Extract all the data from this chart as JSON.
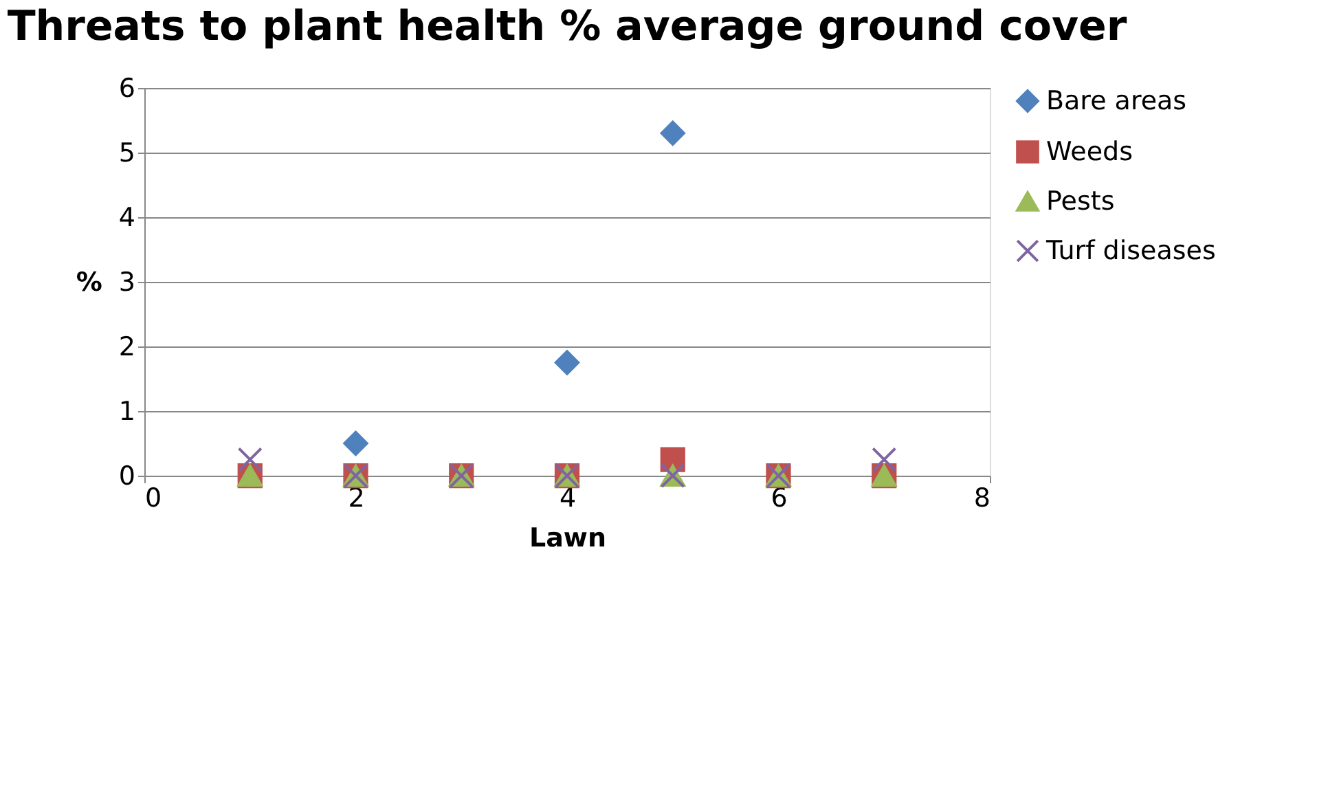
{
  "chart_data": {
    "type": "scatter",
    "title": "Threats to plant health % average ground cover",
    "xlabel": "Lawn",
    "ylabel": "%",
    "x": [
      1,
      2,
      3,
      4,
      5,
      6,
      7
    ],
    "series": [
      {
        "name": "Bare areas",
        "color": "#4f81bd",
        "marker": "diamond",
        "values": [
          null,
          0.5,
          null,
          1.75,
          5.3,
          null,
          null
        ]
      },
      {
        "name": "Weeds",
        "color": "#c0504d",
        "marker": "square",
        "values": [
          0,
          0,
          0,
          0,
          0.25,
          0,
          0
        ]
      },
      {
        "name": "Pests",
        "color": "#9bbb59",
        "marker": "triangle",
        "values": [
          0,
          0,
          0,
          0,
          0,
          0,
          0
        ]
      },
      {
        "name": "Turf diseases",
        "color": "#8064a2",
        "marker": "cross",
        "values": [
          0.25,
          0,
          0,
          0,
          0,
          0,
          0.25
        ]
      }
    ],
    "xlim": [
      0,
      8
    ],
    "xticks": [
      0,
      2,
      4,
      6,
      8
    ],
    "ylim": [
      0,
      6
    ],
    "yticks": [
      0,
      1,
      2,
      3,
      4,
      5,
      6
    ],
    "grid": "y",
    "legend": "right"
  }
}
